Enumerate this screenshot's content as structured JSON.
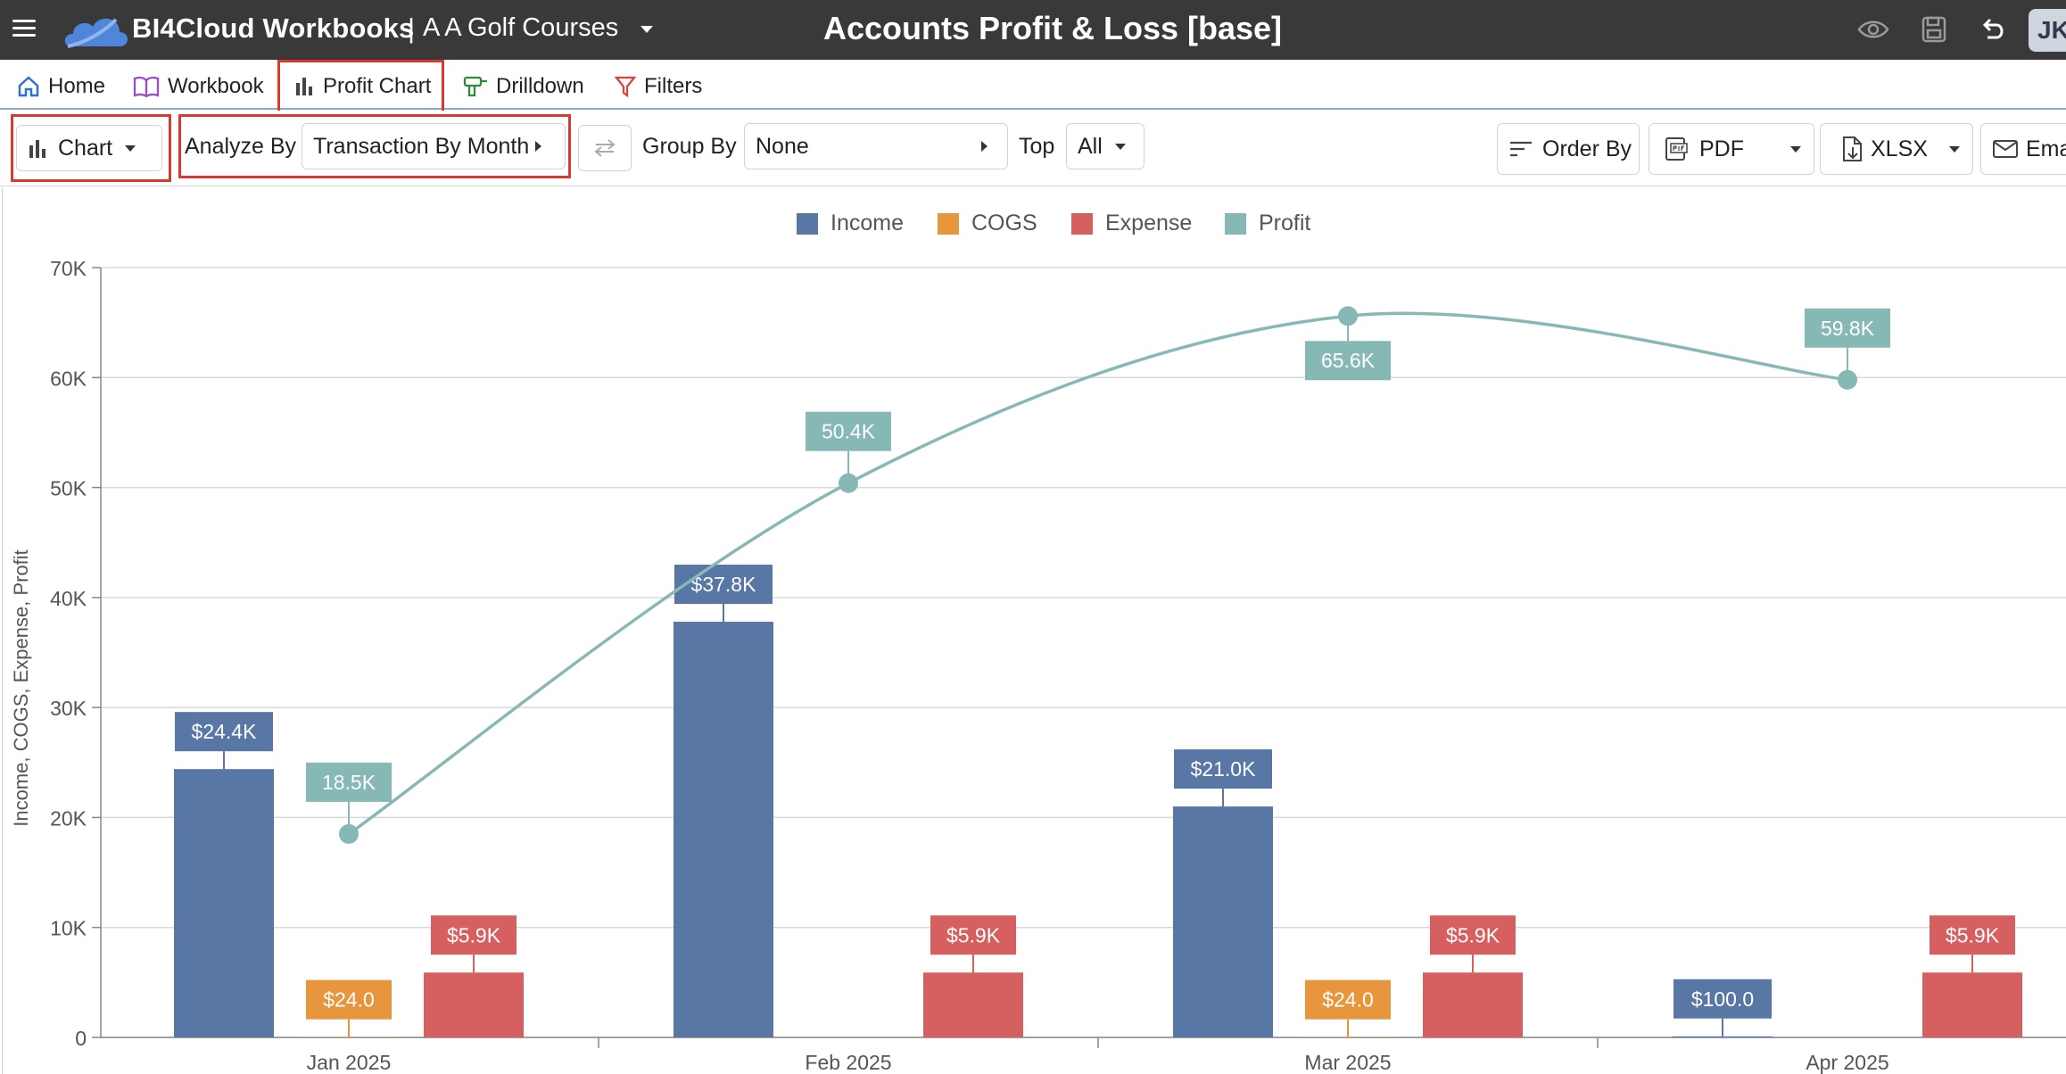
{
  "app": {
    "name": "BI4Cloud Workbooks",
    "separator": "|",
    "company": "A A Golf Courses",
    "report_title": "Accounts Profit & Loss [base]",
    "user_initials": "JK"
  },
  "icons": {
    "menu": "hamburger-menu-icon",
    "logo": "cloud-logo-icon",
    "preview": "eye-icon",
    "save": "save-icon",
    "undo": "undo-icon"
  },
  "tabs": [
    {
      "label": "Home",
      "icon": "home-icon",
      "color": "#2f6fd6"
    },
    {
      "label": "Workbook",
      "icon": "book-icon",
      "color": "#9b4dca"
    },
    {
      "label": "Profit Chart",
      "icon": "bar-chart-icon",
      "color": "#444444",
      "active": true
    },
    {
      "label": "Drilldown",
      "icon": "drill-icon",
      "color": "#2e8b3c"
    },
    {
      "label": "Filters",
      "icon": "filter-icon",
      "color": "#d9443a"
    }
  ],
  "toolbar": {
    "view_label": "Chart",
    "analyze_by_label": "Analyze By",
    "analyze_by_value": "Transaction By Month",
    "group_by_label": "Group By",
    "group_by_value": "None",
    "top_label": "Top",
    "top_value": "All",
    "order_by_label": "Order By",
    "pdf_label": "PDF",
    "xlsx_label": "XLSX",
    "email_label": "Ema"
  },
  "colors": {
    "income": "#5877a4",
    "cogs": "#e8963e",
    "expense": "#d65f5f",
    "profit": "#86b8b6",
    "highlight": "#d93a2e"
  },
  "chart_data": {
    "type": "bar",
    "categories": [
      "Jan 2025",
      "Feb 2025",
      "Mar 2025",
      "Apr 2025"
    ],
    "ylabel": "Income, COGS, Expense, Profit",
    "ylim": [
      0,
      70000
    ],
    "yticks": [
      "0",
      "10K",
      "20K",
      "30K",
      "40K",
      "50K",
      "60K",
      "70K"
    ],
    "grid": true,
    "legend_position": "top-center",
    "series": [
      {
        "name": "Income",
        "kind": "bar",
        "values": [
          24400,
          37800,
          21000,
          100
        ],
        "labels": [
          "$24.4K",
          "$37.8K",
          "$21.0K",
          "$100.0"
        ]
      },
      {
        "name": "COGS",
        "kind": "bar",
        "values": [
          24,
          0,
          24,
          0
        ],
        "labels": [
          "$24.0",
          "",
          "$24.0",
          ""
        ]
      },
      {
        "name": "Expense",
        "kind": "bar",
        "values": [
          5900,
          5900,
          5900,
          5900
        ],
        "labels": [
          "$5.9K",
          "$5.9K",
          "$5.9K",
          "$5.9K"
        ]
      },
      {
        "name": "Profit",
        "kind": "line",
        "values": [
          18500,
          50400,
          65600,
          59800
        ],
        "labels": [
          "18.5K",
          "50.4K",
          "65.6K",
          "59.8K"
        ]
      }
    ]
  }
}
